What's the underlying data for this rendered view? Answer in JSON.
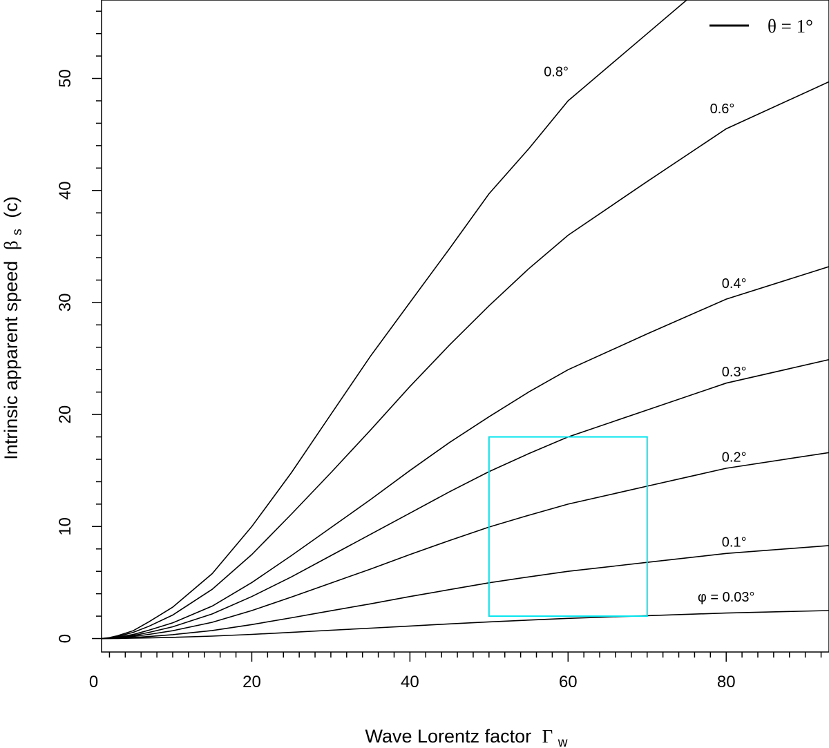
{
  "chart_data": {
    "type": "line",
    "xlabel": "Wave Lorentz factor",
    "xlabel_symbol": "Γ",
    "xlabel_sub": "w",
    "ylabel": "Intrinsic apparent speed",
    "ylabel_symbol": "β",
    "ylabel_sub": "s",
    "ylabel_unit": "(c)",
    "xlim": [
      1,
      93
    ],
    "ylim": [
      -1.2,
      57
    ],
    "x_ticks": [
      0,
      20,
      40,
      60,
      80
    ],
    "x_tick_labels": [
      "0",
      "20",
      "40",
      "60",
      "80"
    ],
    "x_minor_step": 2,
    "y_ticks": [
      0,
      10,
      20,
      30,
      40,
      50
    ],
    "y_tick_labels": [
      "0",
      "10",
      "20",
      "30",
      "40",
      "50"
    ],
    "y_minor_step": 2,
    "legend": {
      "label": "θ = 1°",
      "position": "top-right"
    },
    "series": [
      {
        "name": "0.8°",
        "points": [
          [
            1,
            0
          ],
          [
            2,
            0.08
          ],
          [
            3,
            0.25
          ],
          [
            5,
            0.7
          ],
          [
            7,
            1.5
          ],
          [
            10,
            2.8
          ],
          [
            15,
            5.8
          ],
          [
            20,
            10.0
          ],
          [
            25,
            14.8
          ],
          [
            30,
            20.0
          ],
          [
            35,
            25.2
          ],
          [
            40,
            30.0
          ],
          [
            45,
            34.8
          ],
          [
            50,
            39.7
          ],
          [
            55,
            43.7
          ],
          [
            60,
            48.0
          ],
          [
            70,
            54.0
          ],
          [
            75,
            57.0
          ]
        ],
        "label": "0.8°",
        "label_at": [
          58.5,
          50.2
        ]
      },
      {
        "name": "0.6°",
        "points": [
          [
            1,
            0
          ],
          [
            2,
            0.06
          ],
          [
            3,
            0.19
          ],
          [
            5,
            0.55
          ],
          [
            7,
            1.1
          ],
          [
            10,
            2.1
          ],
          [
            15,
            4.4
          ],
          [
            20,
            7.5
          ],
          [
            25,
            11.1
          ],
          [
            30,
            14.8
          ],
          [
            35,
            18.6
          ],
          [
            40,
            22.5
          ],
          [
            45,
            26.2
          ],
          [
            50,
            29.7
          ],
          [
            55,
            33.0
          ],
          [
            60,
            36.0
          ],
          [
            70,
            40.8
          ],
          [
            80,
            45.5
          ],
          [
            93,
            49.7
          ]
        ],
        "label": "0.6°",
        "label_at": [
          79.5,
          46.9
        ]
      },
      {
        "name": "0.4°",
        "points": [
          [
            1,
            0
          ],
          [
            2,
            0.04
          ],
          [
            3,
            0.13
          ],
          [
            5,
            0.36
          ],
          [
            7,
            0.75
          ],
          [
            10,
            1.4
          ],
          [
            15,
            2.9
          ],
          [
            20,
            5.0
          ],
          [
            25,
            7.4
          ],
          [
            30,
            9.9
          ],
          [
            35,
            12.4
          ],
          [
            40,
            15.0
          ],
          [
            45,
            17.5
          ],
          [
            50,
            19.8
          ],
          [
            55,
            22.0
          ],
          [
            60,
            24.0
          ],
          [
            70,
            27.2
          ],
          [
            80,
            30.3
          ],
          [
            93,
            33.2
          ]
        ],
        "label": "0.4°",
        "label_at": [
          81,
          31.3
        ]
      },
      {
        "name": "0.3°",
        "points": [
          [
            1,
            0
          ],
          [
            2,
            0.03
          ],
          [
            3,
            0.1
          ],
          [
            5,
            0.27
          ],
          [
            7,
            0.55
          ],
          [
            10,
            1.05
          ],
          [
            15,
            2.2
          ],
          [
            20,
            3.75
          ],
          [
            25,
            5.5
          ],
          [
            30,
            7.4
          ],
          [
            35,
            9.3
          ],
          [
            40,
            11.2
          ],
          [
            45,
            13.1
          ],
          [
            50,
            14.9
          ],
          [
            55,
            16.5
          ],
          [
            60,
            18.0
          ],
          [
            70,
            20.4
          ],
          [
            80,
            22.8
          ],
          [
            93,
            24.9
          ]
        ],
        "label": "0.3°",
        "label_at": [
          81,
          23.4
        ]
      },
      {
        "name": "0.2°",
        "points": [
          [
            1,
            0
          ],
          [
            2,
            0.02
          ],
          [
            3,
            0.06
          ],
          [
            5,
            0.18
          ],
          [
            7,
            0.37
          ],
          [
            10,
            0.7
          ],
          [
            15,
            1.45
          ],
          [
            20,
            2.5
          ],
          [
            25,
            3.7
          ],
          [
            30,
            4.95
          ],
          [
            35,
            6.2
          ],
          [
            40,
            7.5
          ],
          [
            45,
            8.75
          ],
          [
            50,
            9.95
          ],
          [
            55,
            11.0
          ],
          [
            60,
            12.0
          ],
          [
            70,
            13.6
          ],
          [
            80,
            15.2
          ],
          [
            93,
            16.6
          ]
        ],
        "label": "0.2°",
        "label_at": [
          81,
          15.8
        ]
      },
      {
        "name": "0.1°",
        "points": [
          [
            1,
            0
          ],
          [
            2,
            0.01
          ],
          [
            3,
            0.03
          ],
          [
            5,
            0.09
          ],
          [
            7,
            0.18
          ],
          [
            10,
            0.35
          ],
          [
            15,
            0.72
          ],
          [
            20,
            1.25
          ],
          [
            25,
            1.85
          ],
          [
            30,
            2.48
          ],
          [
            35,
            3.1
          ],
          [
            40,
            3.75
          ],
          [
            45,
            4.37
          ],
          [
            50,
            4.98
          ],
          [
            55,
            5.5
          ],
          [
            60,
            6.0
          ],
          [
            70,
            6.8
          ],
          [
            80,
            7.6
          ],
          [
            93,
            8.3
          ]
        ],
        "label": "0.1°",
        "label_at": [
          81,
          8.2
        ]
      },
      {
        "name": "φ = 0.03°",
        "points": [
          [
            1,
            0
          ],
          [
            2,
            0.0
          ],
          [
            3,
            0.01
          ],
          [
            5,
            0.03
          ],
          [
            7,
            0.06
          ],
          [
            10,
            0.11
          ],
          [
            15,
            0.22
          ],
          [
            20,
            0.37
          ],
          [
            25,
            0.55
          ],
          [
            30,
            0.74
          ],
          [
            35,
            0.93
          ],
          [
            40,
            1.12
          ],
          [
            45,
            1.31
          ],
          [
            50,
            1.49
          ],
          [
            55,
            1.65
          ],
          [
            60,
            1.8
          ],
          [
            70,
            2.04
          ],
          [
            80,
            2.28
          ],
          [
            93,
            2.5
          ]
        ],
        "label": "φ = 0.03°",
        "label_at": [
          80,
          3.3
        ]
      }
    ],
    "highlight_box": {
      "x": [
        50,
        70
      ],
      "y": [
        2,
        18
      ],
      "color": "#00e5ee"
    },
    "line_color": "#000000"
  }
}
